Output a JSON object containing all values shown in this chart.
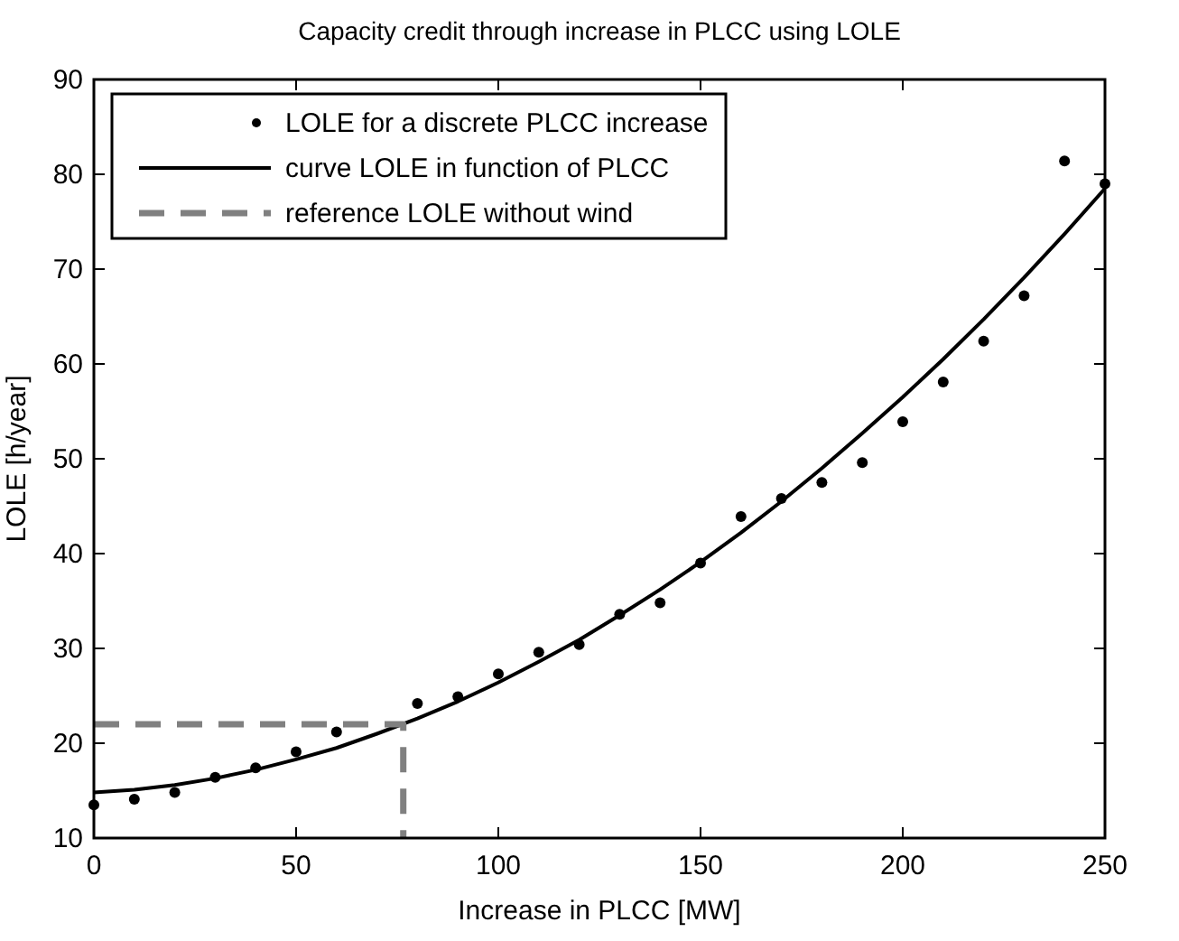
{
  "chart_data": {
    "type": "line",
    "title": "Capacity credit through increase in PLCC using LOLE",
    "xlabel": "Increase in PLCC [MW]",
    "ylabel": "LOLE [h/year]",
    "xlim": [
      0,
      250
    ],
    "xticks": [
      0,
      50,
      100,
      150,
      200,
      250
    ],
    "ylim": [
      10,
      90
    ],
    "yticks": [
      10,
      20,
      30,
      40,
      50,
      60,
      70,
      80,
      90
    ],
    "grid": false,
    "legend": "top left",
    "series": [
      {
        "name": "LOLE for a discrete PLCC increase",
        "type": "scatter",
        "marker": "circle",
        "color": "#000000",
        "x": [
          0,
          10,
          20,
          30,
          40,
          50,
          60,
          80,
          90,
          100,
          110,
          120,
          130,
          140,
          150,
          160,
          170,
          180,
          190,
          200,
          210,
          220,
          230,
          240,
          250
        ],
        "values": [
          13.5,
          14.1,
          14.8,
          16.4,
          17.4,
          19.1,
          21.2,
          24.2,
          24.9,
          27.3,
          29.6,
          30.4,
          33.6,
          34.8,
          39.0,
          43.9,
          45.8,
          47.5,
          49.6,
          53.9,
          58.1,
          62.4,
          67.2,
          81.4,
          79
        ]
      },
      {
        "name": "curve LOLE in function of PLCC",
        "marker": "none",
        "line_style": "solid",
        "color": "#000000",
        "x": [
          0,
          10,
          20,
          30,
          40,
          50,
          60,
          70,
          80,
          90,
          100,
          110,
          120,
          130,
          140,
          150,
          160,
          170,
          180,
          190,
          200,
          210,
          220,
          230,
          240,
          250
        ],
        "values": [
          14.8,
          15.1,
          15.6,
          16.3,
          17.2,
          18.3,
          19.5,
          21.0,
          22.6,
          24.4,
          26.4,
          28.6,
          30.9,
          33.5,
          36.2,
          39.1,
          42.2,
          45.5,
          49.0,
          52.7,
          56.5,
          60.5,
          64.7,
          69.1,
          73.7,
          78.5
        ]
      },
      {
        "name": "reference LOLE without wind",
        "marker": "none",
        "line_style": "dashed",
        "color": "#808080",
        "x": [
          0,
          76.5,
          76.5
        ],
        "values": [
          22,
          22,
          10
        ]
      }
    ]
  }
}
